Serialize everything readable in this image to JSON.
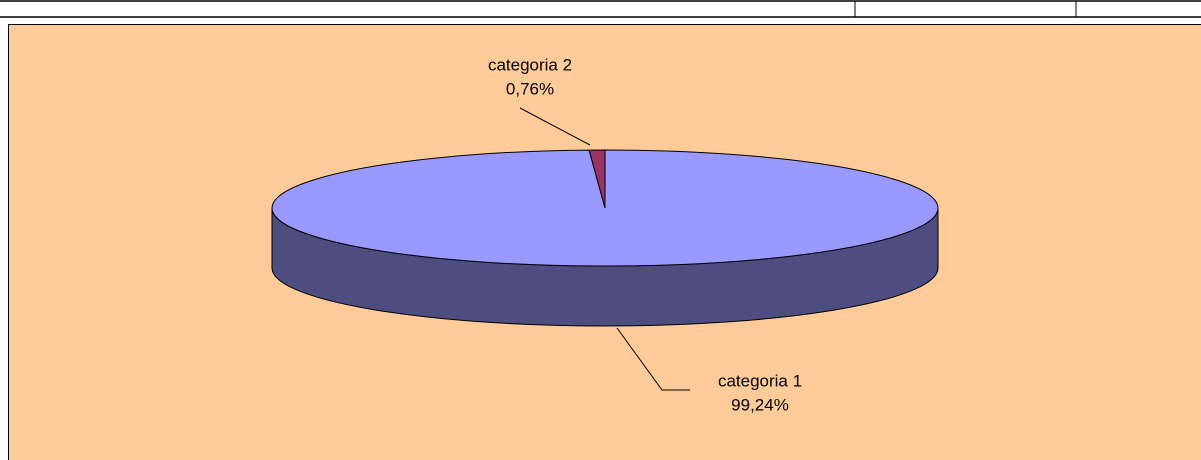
{
  "chart_data": {
    "type": "pie",
    "categories": [
      "categoria 1",
      "categoria 2"
    ],
    "values": [
      99.24,
      0.76
    ],
    "value_labels": [
      "99,24%",
      "0,76%"
    ],
    "colors": [
      "#9999ff",
      "#993366"
    ]
  }
}
